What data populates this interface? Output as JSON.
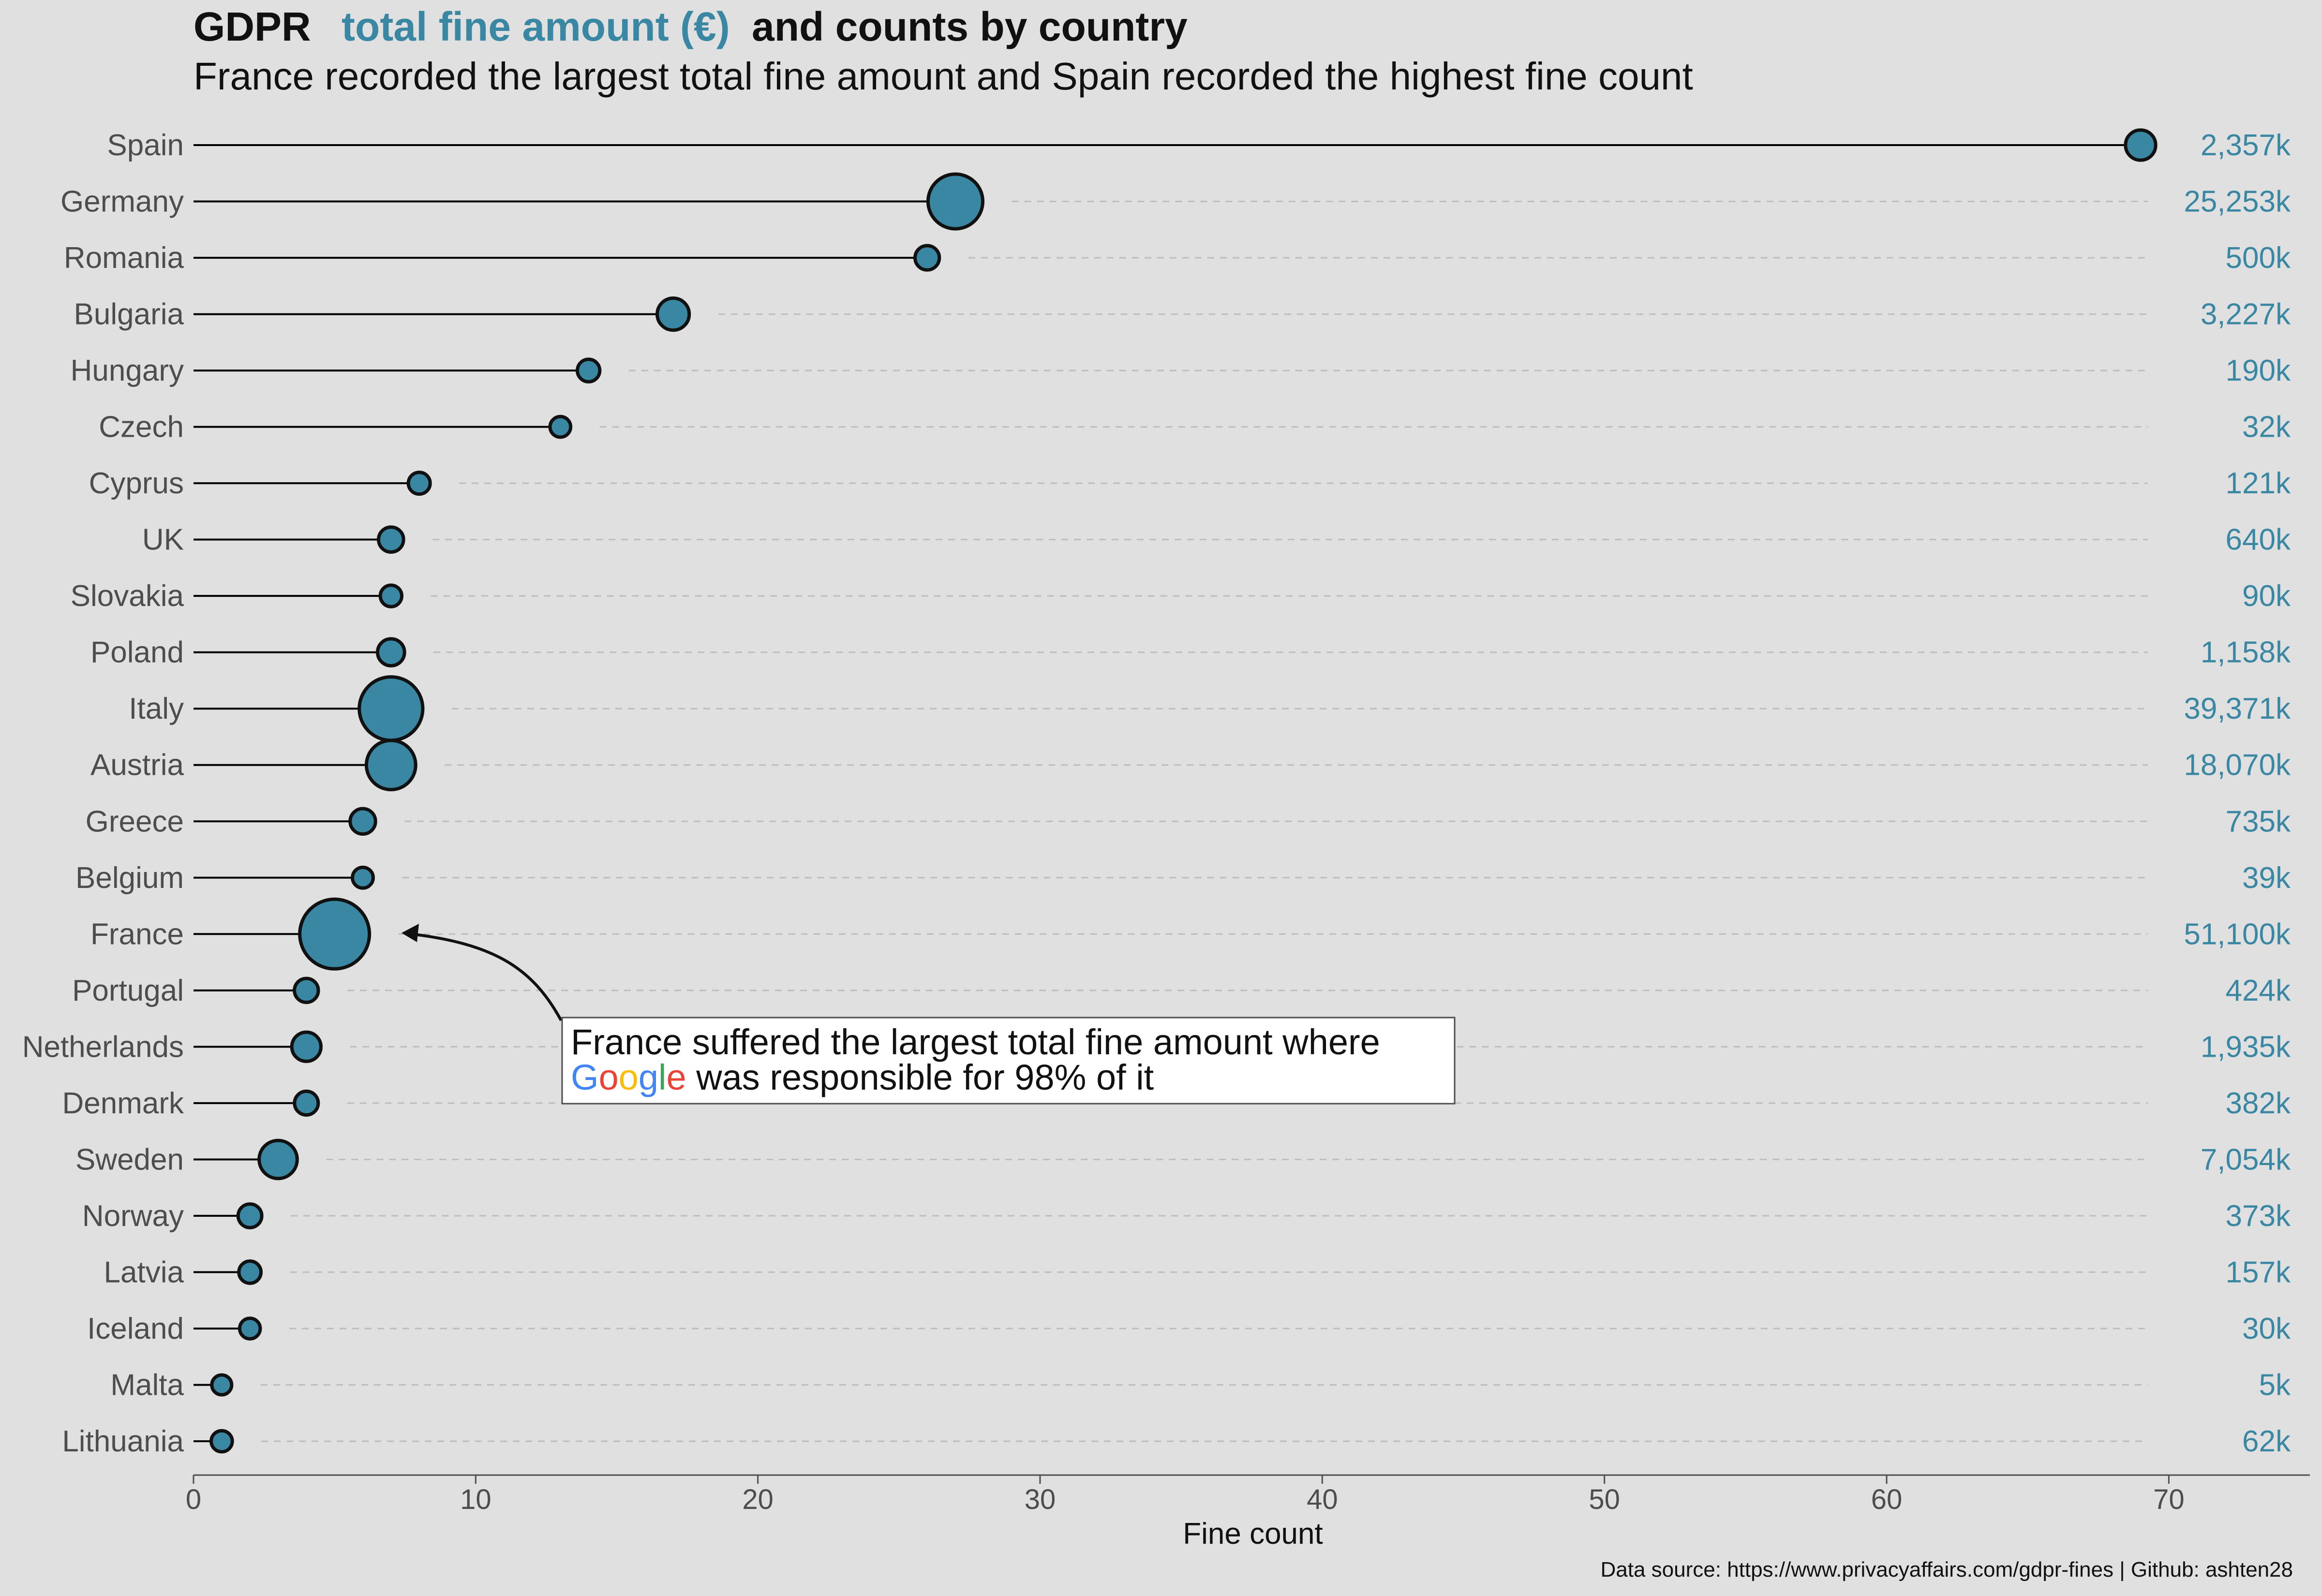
{
  "title": {
    "prefix": "GDPR",
    "accent": "total fine amount (€)",
    "suffix": "and counts by country"
  },
  "subtitle": "France recorded the largest total fine amount and Spain recorded the highest fine count",
  "caption": "Data source: https://www.privacyaffairs.com/gdpr-fines  |  Github: ashten28",
  "annotation": {
    "line1": "France suffered the largest total fine amount where",
    "google": [
      "G",
      "o",
      "o",
      "g",
      "l",
      "e"
    ],
    "google_colors": [
      "#4285F4",
      "#EA4335",
      "#FBBC05",
      "#4285F4",
      "#34A853",
      "#EA4335"
    ],
    "line2_rest": " was responsible for 98% of it",
    "target": "France"
  },
  "colors": {
    "background": "#e0e0e0",
    "bubble": "#3a87a3",
    "accent_text": "#3a87a3",
    "stem": "#000000",
    "guide": "#bdbdbd"
  },
  "chart_data": {
    "type": "scatter",
    "xlabel": "Fine count",
    "xlim": [
      0,
      75
    ],
    "xticks": [
      0,
      10,
      20,
      30,
      40,
      50,
      60,
      70
    ],
    "grid": false,
    "points": [
      {
        "country": "Spain",
        "count": 69,
        "amount_k": 2357,
        "label": "2,357k"
      },
      {
        "country": "Germany",
        "count": 27,
        "amount_k": 25253,
        "label": "25,253k"
      },
      {
        "country": "Romania",
        "count": 26,
        "amount_k": 500,
        "label": "500k"
      },
      {
        "country": "Bulgaria",
        "count": 17,
        "amount_k": 3227,
        "label": "3,227k"
      },
      {
        "country": "Hungary",
        "count": 14,
        "amount_k": 190,
        "label": "190k"
      },
      {
        "country": "Czech",
        "count": 13,
        "amount_k": 32,
        "label": "32k"
      },
      {
        "country": "Cyprus",
        "count": 8,
        "amount_k": 121,
        "label": "121k"
      },
      {
        "country": "UK",
        "count": 7,
        "amount_k": 640,
        "label": "640k"
      },
      {
        "country": "Slovakia",
        "count": 7,
        "amount_k": 90,
        "label": "90k"
      },
      {
        "country": "Poland",
        "count": 7,
        "amount_k": 1158,
        "label": "1,158k"
      },
      {
        "country": "Italy",
        "count": 7,
        "amount_k": 39371,
        "label": "39,371k"
      },
      {
        "country": "Austria",
        "count": 7,
        "amount_k": 18070,
        "label": "18,070k"
      },
      {
        "country": "Greece",
        "count": 6,
        "amount_k": 735,
        "label": "735k"
      },
      {
        "country": "Belgium",
        "count": 6,
        "amount_k": 39,
        "label": "39k"
      },
      {
        "country": "France",
        "count": 5,
        "amount_k": 51100,
        "label": "51,100k"
      },
      {
        "country": "Portugal",
        "count": 4,
        "amount_k": 424,
        "label": "424k"
      },
      {
        "country": "Netherlands",
        "count": 4,
        "amount_k": 1935,
        "label": "1,935k"
      },
      {
        "country": "Denmark",
        "count": 4,
        "amount_k": 382,
        "label": "382k"
      },
      {
        "country": "Sweden",
        "count": 3,
        "amount_k": 7054,
        "label": "7,054k"
      },
      {
        "country": "Norway",
        "count": 2,
        "amount_k": 373,
        "label": "373k"
      },
      {
        "country": "Latvia",
        "count": 2,
        "amount_k": 157,
        "label": "157k"
      },
      {
        "country": "Iceland",
        "count": 2,
        "amount_k": 30,
        "label": "30k"
      },
      {
        "country": "Malta",
        "count": 1,
        "amount_k": 5,
        "label": "5k"
      },
      {
        "country": "Lithuania",
        "count": 1,
        "amount_k": 62,
        "label": "62k"
      }
    ]
  }
}
